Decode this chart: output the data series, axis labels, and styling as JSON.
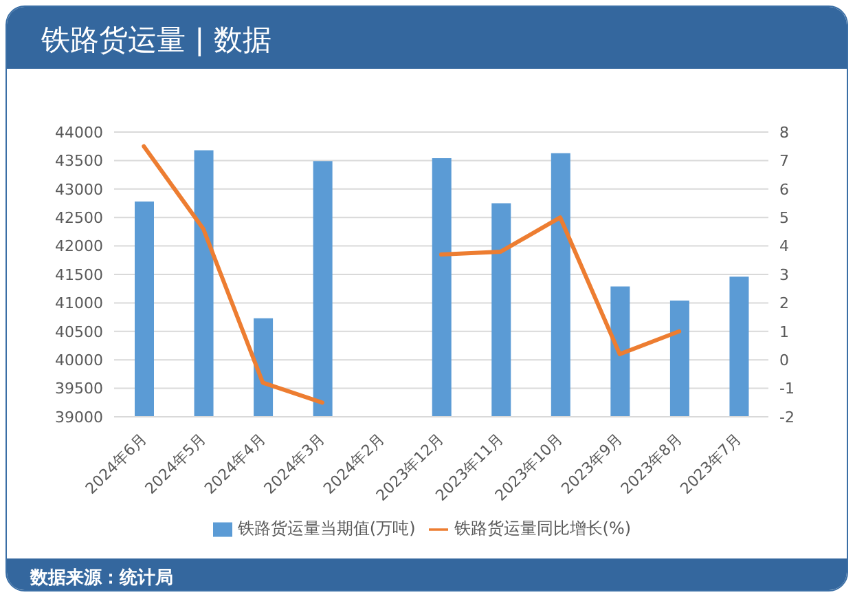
{
  "chart_data": {
    "type": "bar",
    "title": "铁路货运量 | 数据",
    "categories": [
      "2024年6月",
      "2024年5月",
      "2024年4月",
      "2024年3月",
      "2024年2月",
      "2023年12月",
      "2023年11月",
      "2023年10月",
      "2023年9月",
      "2023年8月",
      "2023年7月"
    ],
    "series": [
      {
        "name": "铁路货运量当期值(万吨)",
        "color": "#5b9bd5",
        "values": [
          42780,
          43680,
          40730,
          43490,
          null,
          43540,
          42750,
          43630,
          41290,
          41040,
          41460
        ]
      },
      {
        "name": "铁路货运量同比增长(%)",
        "type": "line",
        "axis": "y2",
        "color": "#ed7d31",
        "values": [
          7.5,
          4.6,
          -0.8,
          -1.5,
          null,
          3.7,
          3.8,
          5.0,
          0.2,
          1.0,
          null
        ]
      }
    ],
    "ylim": [
      39000,
      44000
    ],
    "yticks": [
      39000,
      39500,
      40000,
      40500,
      41000,
      41500,
      42000,
      42500,
      43000,
      43500,
      44000
    ],
    "y2lim": [
      -2,
      8
    ],
    "y2ticks": [
      -2,
      -1,
      0,
      1,
      2,
      3,
      4,
      5,
      6,
      7,
      8
    ],
    "grid": "y",
    "legend": "bottom",
    "marker": "none",
    "annotations": [
      "数据来源：统计局"
    ]
  }
}
